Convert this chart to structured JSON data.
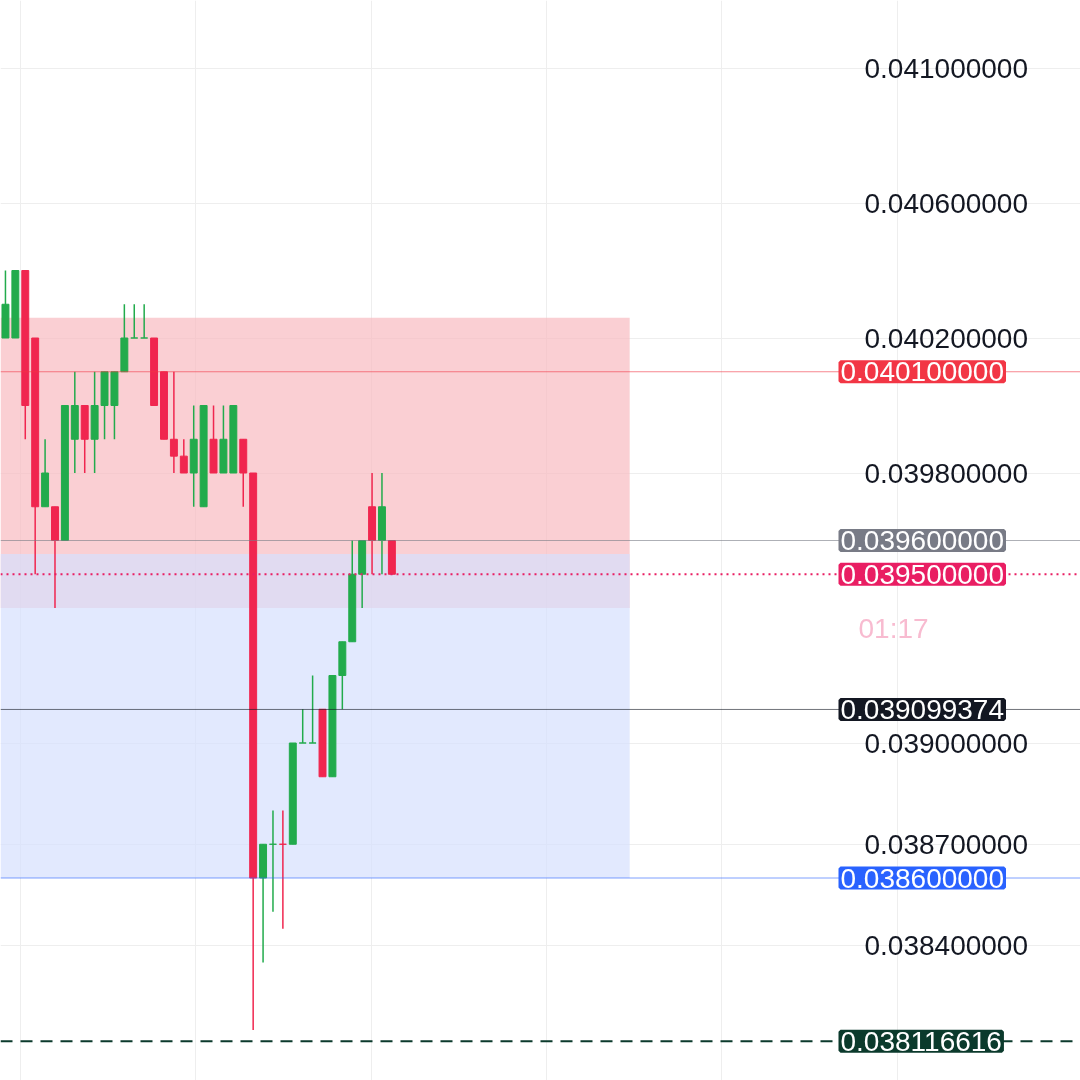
{
  "chart_data": {
    "type": "candlestick",
    "categories": [
      null,
      null,
      null,
      null,
      null,
      null,
      null,
      null,
      null,
      null,
      null,
      null,
      null,
      null,
      null,
      null,
      null,
      null,
      null,
      null,
      null,
      null,
      null,
      null,
      null,
      null,
      null,
      null,
      null,
      null,
      null,
      null,
      null,
      null,
      null,
      null,
      null,
      null,
      null,
      null,
      null,
      null,
      null,
      null,
      null,
      null,
      null,
      null,
      null,
      null,
      null,
      null,
      null,
      null,
      null,
      null,
      null,
      null,
      null,
      null,
      null,
      null,
      null,
      null,
      null,
      null,
      null,
      null,
      null,
      null,
      null,
      null,
      null,
      null,
      null,
      null,
      null,
      null,
      null,
      null,
      null,
      null,
      null,
      null,
      null,
      null,
      null,
      null,
      null,
      null,
      null,
      null,
      null,
      null,
      null,
      null,
      null,
      null,
      null,
      null,
      null,
      null,
      null,
      null,
      null,
      null,
      null,
      null,
      null
    ],
    "ohlc": [
      [
        0.0402,
        0.0404,
        0.0402,
        0.0403
      ],
      [
        0.0402,
        0.0404,
        0.0402,
        0.0404
      ],
      [
        0.0404,
        0.0404,
        0.0399,
        0.04
      ],
      [
        0.0402,
        0.0402,
        0.0395,
        0.0397
      ],
      [
        0.0397,
        0.0399,
        0.0397,
        0.0398
      ],
      [
        0.0397,
        0.0397,
        0.0394,
        0.0396
      ],
      [
        0.0396,
        0.04,
        0.0396,
        0.04
      ],
      [
        0.0399,
        0.0401,
        0.0398,
        0.04
      ],
      [
        0.04,
        0.04,
        0.0398,
        0.0399
      ],
      [
        0.0399,
        0.0401,
        0.0398,
        0.04
      ],
      [
        0.04,
        0.0401,
        0.0399,
        0.0401
      ],
      [
        0.04,
        0.0401,
        0.0399,
        0.0401
      ],
      [
        0.0401,
        0.0403,
        0.0401,
        0.0402
      ],
      [
        0.0402,
        0.0403,
        0.0402,
        0.0402
      ],
      [
        0.0402,
        0.0403,
        0.0402,
        0.0402
      ],
      [
        0.0402,
        0.0402,
        0.04,
        0.04
      ],
      [
        0.0401,
        0.0401,
        0.0399,
        0.0399
      ],
      [
        0.0399,
        0.0401,
        0.0398,
        0.03985
      ],
      [
        0.03985,
        0.0399,
        0.0398,
        0.0398
      ],
      [
        0.0398,
        0.04,
        0.0397,
        0.0399
      ],
      [
        0.0397,
        0.04,
        0.0397,
        0.04
      ],
      [
        0.0399,
        0.04,
        0.0398,
        0.0398
      ],
      [
        0.0398,
        0.04,
        0.0398,
        0.0399
      ],
      [
        0.0398,
        0.04,
        0.0398,
        0.04
      ],
      [
        0.0399,
        0.0399,
        0.0397,
        0.0398
      ],
      [
        0.0398,
        0.0398,
        0.03815,
        0.0386
      ],
      [
        0.0386,
        0.0387,
        0.03835,
        0.0387
      ],
      [
        0.0387,
        0.0388,
        0.0385,
        0.0387
      ],
      [
        0.0387,
        0.0388,
        0.03845,
        0.0387
      ],
      [
        0.0387,
        0.039,
        0.0387,
        0.039
      ],
      [
        0.039,
        0.0391,
        0.039,
        0.039
      ],
      [
        0.039,
        0.0392,
        0.039,
        0.039
      ],
      [
        0.0391,
        0.0391,
        0.0389,
        0.0389
      ],
      [
        0.0389,
        0.0392,
        0.0389,
        0.0392
      ],
      [
        0.0392,
        0.0393,
        0.0391,
        0.0393
      ],
      [
        0.0393,
        0.0396,
        0.0393,
        0.0395
      ],
      [
        0.0395,
        0.0396,
        0.0394,
        0.0396
      ],
      [
        0.0397,
        0.0398,
        0.0395,
        0.0396
      ],
      [
        0.0396,
        0.0398,
        0.0395,
        0.0397
      ],
      [
        0.0396,
        0.0396,
        0.0395,
        0.0395
      ],
      null,
      null,
      null,
      null,
      null,
      null,
      null,
      null,
      null,
      null,
      null,
      null,
      null,
      null,
      null,
      null,
      null,
      null,
      null,
      null,
      null,
      null,
      null,
      null,
      null,
      null,
      null,
      null,
      null,
      null,
      null,
      null,
      null,
      null,
      null,
      null,
      null,
      null,
      null,
      null,
      null,
      null,
      null,
      null,
      null,
      null,
      null,
      null,
      null,
      null,
      null,
      null,
      null,
      null,
      null,
      null,
      null,
      null,
      null,
      null,
      null,
      null,
      null,
      null,
      null,
      null,
      null,
      null,
      null
    ],
    "colors": [
      "#22ab4c",
      "#22ab4c",
      "#f0264f",
      "#f0264f",
      "#22ab4c",
      "#f0264f",
      "#22ab4c",
      "#22ab4c",
      "#f0264f",
      "#22ab4c",
      "#22ab4c",
      "#22ab4c",
      "#22ab4c",
      "#22ab4c",
      "#22ab4c",
      "#f0264f",
      "#f0264f",
      "#f0264f",
      "#f0264f",
      "#22ab4c",
      "#22ab4c",
      "#f0264f",
      "#22ab4c",
      "#22ab4c",
      "#f0264f",
      "#f0264f",
      "#22ab4c",
      "#22ab4c",
      "#f0264f",
      "#22ab4c",
      "#22ab4c",
      "#22ab4c",
      "#f0264f",
      "#22ab4c",
      "#22ab4c",
      "#22ab4c",
      "#22ab4c",
      "#f0264f",
      "#22ab4c",
      "#f0264f",
      null,
      null,
      null,
      null,
      null,
      null,
      null,
      null,
      null,
      null,
      null,
      null,
      null,
      null,
      null,
      null,
      null,
      null,
      null,
      null,
      null,
      null,
      null,
      null,
      null,
      null,
      null,
      null,
      null,
      null,
      null,
      null,
      null,
      null,
      null,
      null,
      null,
      null,
      null,
      null,
      null,
      null,
      null,
      null,
      null,
      null,
      null,
      null,
      null,
      null,
      null,
      null,
      null,
      null,
      null,
      null,
      null,
      null,
      null,
      null,
      null,
      null,
      null,
      null,
      null,
      null,
      null,
      null,
      null
    ],
    "ylim": [
      0.038,
      0.0412
    ],
    "yticks": [
      {
        "value": 0.0384,
        "label": "0.038400000"
      },
      {
        "value": 0.0387,
        "label": "0.038700000"
      },
      {
        "value": 0.039,
        "label": "0.039000000"
      },
      {
        "value": 0.0398,
        "label": "0.039800000"
      },
      {
        "value": 0.0402,
        "label": "0.040200000"
      },
      {
        "value": 0.0406,
        "label": "0.040600000"
      },
      {
        "value": 0.041,
        "label": "0.041000000"
      }
    ],
    "grid": true,
    "tick_labels": "y",
    "bands": [
      {
        "axis": "y",
        "from": 0.0394,
        "to": 0.04026,
        "color": "#f8bbc0"
      },
      {
        "axis": "y",
        "from": 0.0386,
        "to": 0.03956,
        "color": "#d6e0fd"
      }
    ],
    "ref_lines": [
      {
        "axis": "y",
        "value": 0.0401,
        "label": "0.040100000",
        "color": "#f23645"
      },
      {
        "axis": "y",
        "value": 0.0396,
        "label": "0.039600000",
        "color": "#787b86"
      },
      {
        "axis": "y",
        "value": 0.0395,
        "label": "0.039500000",
        "color": "#e91e63",
        "line_style": "dotted"
      },
      {
        "axis": "y",
        "value": 0.039099374,
        "label": "0.039099374",
        "color": "#131722"
      },
      {
        "axis": "y",
        "value": 0.0386,
        "label": "0.038600000",
        "color": "#2962ff"
      },
      {
        "axis": "y",
        "value": 0.038116616,
        "label": "0.038116616",
        "color": "#0b3a2c",
        "line_style": "dashed"
      }
    ],
    "annotations": [
      "01:17"
    ]
  }
}
